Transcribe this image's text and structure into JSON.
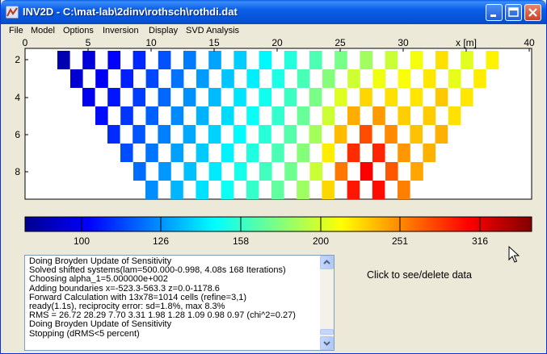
{
  "window": {
    "title": "INV2D - C:\\mat-lab\\2dinv\\rothsch\\rothdi.dat",
    "accent_color": "#0a5ee8"
  },
  "menu": {
    "items": [
      "File",
      "Model",
      "Options",
      "Inversion",
      "Display",
      "SVD Analysis"
    ]
  },
  "section_plot": {
    "x_ticks": [
      "0",
      "5",
      "10",
      "15",
      "20",
      "25",
      "30",
      "35",
      "40"
    ],
    "x_unit_label": "x [m]",
    "y_ticks": [
      "2",
      "4",
      "6",
      "8"
    ]
  },
  "colorbar": {
    "tick_labels": [
      "100",
      "126",
      "158",
      "200",
      "251",
      "316"
    ]
  },
  "log": {
    "lines": [
      "Doing Broyden Update of Sensitivity",
      "Solved shifted systems(lam=500.000-0.998, 4.08s 168 Iterations)",
      "Choosing alpha_1=5.000000e+002",
      "Adding boundaries x=-523.3-563.3  z=0.0-1178.6",
      "Forward Calculation with 13x78=1014 cells (refine=3,1)",
      "ready(1.1s), reciprocity error: sd=1.8%, max 8.3%",
      "RMS = 26.72 28.29 7.70 3.31 1.98 1.28 1.09 0.98 0.97 (chi^2=0.27)",
      "Doing Broyden Update of Sensitivity",
      "Stopping (dRMS<5 percent)"
    ]
  },
  "info": {
    "click_hint": "Click to see/delete data"
  }
}
